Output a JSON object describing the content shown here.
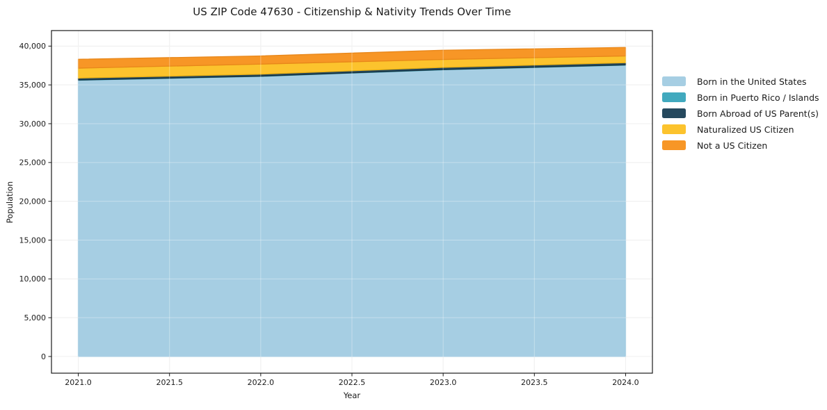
{
  "chart_data": {
    "type": "area",
    "stacked": true,
    "title": "US ZIP Code 47630 - Citizenship & Nativity Trends Over Time",
    "xlabel": "Year",
    "ylabel": "Population",
    "x": [
      2021,
      2022,
      2023,
      2024
    ],
    "series": [
      {
        "name": "Born in the United States",
        "color": "#a6cee3",
        "edge_color": "#8fc0da",
        "values": [
          35600,
          36100,
          36950,
          37550
        ]
      },
      {
        "name": "Born in Puerto Rico / Islands",
        "color": "#41a9be",
        "edge_color": "#2e95aa",
        "values": [
          30,
          30,
          30,
          30
        ]
      },
      {
        "name": "Born Abroad of US Parent(s)",
        "color": "#26495e",
        "edge_color": "#17323f",
        "values": [
          250,
          250,
          280,
          280
        ]
      },
      {
        "name": "Naturalized US Citizen",
        "color": "#fcc32d",
        "edge_color": "#ecb214",
        "values": [
          1280,
          1300,
          1020,
          870
        ]
      },
      {
        "name": "Not a US Citizen",
        "color": "#f79626",
        "edge_color": "#e8871a",
        "values": [
          1140,
          1050,
          1190,
          1100
        ]
      }
    ],
    "xticks": [
      2021.0,
      2021.5,
      2022.0,
      2022.5,
      2023.0,
      2023.5,
      2024.0
    ],
    "xtick_labels": [
      "2021.0",
      "2021.5",
      "2022.0",
      "2022.5",
      "2023.0",
      "2023.5",
      "2024.0"
    ],
    "yticks": [
      0,
      5000,
      10000,
      15000,
      20000,
      25000,
      30000,
      35000,
      40000
    ],
    "ytick_labels": [
      "0",
      "5,000",
      "10,000",
      "15,000",
      "20,000",
      "25,000",
      "30,000",
      "35,000",
      "40,000"
    ],
    "xlim": [
      2020.853,
      2024.147
    ],
    "ylim": [
      -2148,
      42000
    ],
    "grid": true,
    "grid_color": "#e7e7e7",
    "frame_color": "#1a1a1a",
    "text_color": "#1a1a1a",
    "legend_position": "right-outside"
  }
}
